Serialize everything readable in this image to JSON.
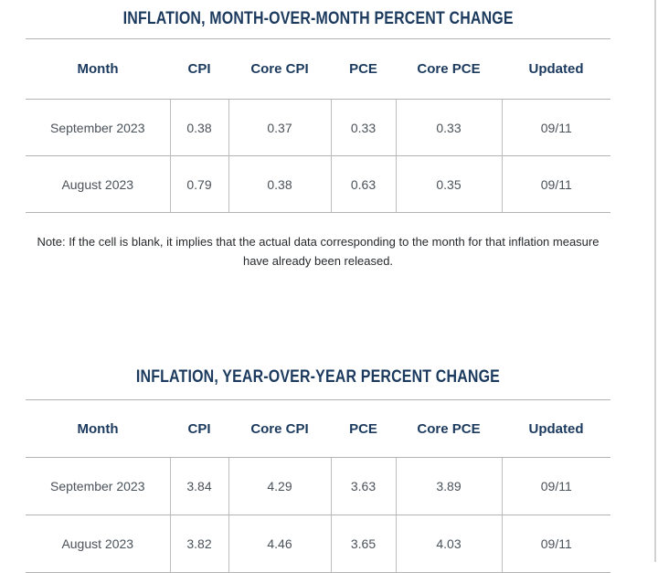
{
  "colors": {
    "accent_navy": "#1b3a5e",
    "body_text": "#4a525a",
    "note_text": "#26292c",
    "table_border": "#b3b3b3",
    "page_edge_border": "#d2d2d2",
    "background": "#ffffff"
  },
  "chart_data": [
    {
      "type": "table",
      "title": "INFLATION, MONTH-OVER-MONTH PERCENT CHANGE",
      "columns": [
        "Month",
        "CPI",
        "Core CPI",
        "PCE",
        "Core PCE",
        "Updated"
      ],
      "rows": [
        [
          "September 2023",
          "0.38",
          "0.37",
          "0.33",
          "0.33",
          "09/11"
        ],
        [
          "August 2023",
          "0.79",
          "0.38",
          "0.63",
          "0.35",
          "09/11"
        ]
      ],
      "note": "Note: If the cell is blank, it implies that the actual data corresponding to the month for that inflation measure have already been released."
    },
    {
      "type": "table",
      "title": "INFLATION, YEAR-OVER-YEAR PERCENT CHANGE",
      "columns": [
        "Month",
        "CPI",
        "Core CPI",
        "PCE",
        "Core PCE",
        "Updated"
      ],
      "rows": [
        [
          "September 2023",
          "3.84",
          "4.29",
          "3.63",
          "3.89",
          "09/11"
        ],
        [
          "August 2023",
          "3.82",
          "4.46",
          "3.65",
          "4.03",
          "09/11"
        ]
      ]
    }
  ]
}
